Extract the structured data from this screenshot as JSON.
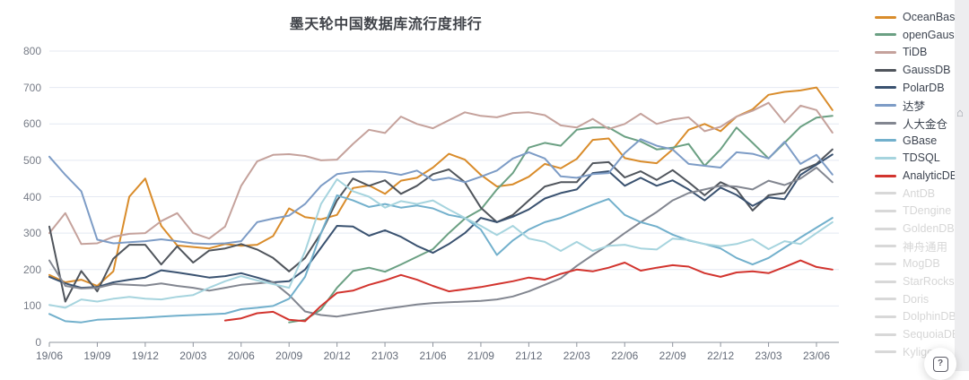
{
  "chart_data": {
    "type": "line",
    "title": "墨天轮中国数据库流行度排行",
    "xlabel": "",
    "ylabel": "",
    "ylim": [
      0,
      800
    ],
    "y_tick_interval": 100,
    "y_tick_labels": [
      "0",
      "100",
      "200",
      "300",
      "400",
      "500",
      "600",
      "700",
      "800"
    ],
    "x_interval": "monthly",
    "x_range_start": "19/06",
    "x_range_end": "23/07",
    "x_tick_labels": [
      "19/06",
      "19/09",
      "19/12",
      "20/03",
      "20/06",
      "20/09",
      "20/12",
      "21/03",
      "21/06",
      "21/09",
      "21/12",
      "22/03",
      "22/06",
      "22/09",
      "22/12",
      "23/03",
      "23/06"
    ],
    "grid": true,
    "legend_position": "right",
    "inactive_color": "#d8d8d8",
    "grid_color": "#e4e9f2",
    "axis_color": "#8f949e",
    "series": [
      {
        "name": "OceanBase",
        "color": "#d98c2b",
        "active": true,
        "values": [
          185,
          165,
          172,
          155,
          195,
          400,
          450,
          320,
          266,
          262,
          258,
          270,
          265,
          268,
          292,
          368,
          344,
          338,
          350,
          424,
          431,
          408,
          444,
          452,
          480,
          518,
          502,
          460,
          428,
          434,
          455,
          490,
          478,
          504,
          556,
          560,
          506,
          497,
          492,
          530,
          584,
          600,
          580,
          620,
          640,
          680,
          688,
          692,
          700,
          638
        ]
      },
      {
        "name": "openGauss",
        "color": "#6ba083",
        "active": true,
        "values": [
          null,
          null,
          null,
          null,
          null,
          null,
          null,
          null,
          null,
          null,
          null,
          null,
          null,
          null,
          null,
          55,
          62,
          90,
          150,
          196,
          205,
          194,
          214,
          235,
          256,
          300,
          340,
          365,
          420,
          465,
          535,
          548,
          540,
          584,
          590,
          590,
          565,
          552,
          530,
          535,
          545,
          485,
          530,
          590,
          548,
          505,
          548,
          592,
          617,
          622
        ]
      },
      {
        "name": "TiDB",
        "color": "#c5a29c",
        "active": true,
        "values": [
          300,
          355,
          270,
          272,
          290,
          298,
          300,
          333,
          355,
          300,
          285,
          318,
          430,
          497,
          515,
          517,
          512,
          500,
          502,
          545,
          584,
          575,
          620,
          600,
          588,
          610,
          632,
          622,
          618,
          630,
          632,
          624,
          596,
          590,
          614,
          586,
          600,
          628,
          600,
          612,
          618,
          580,
          592,
          620,
          636,
          658,
          604,
          650,
          638,
          576
        ]
      },
      {
        "name": "GaussDB",
        "color": "#50555c",
        "active": true,
        "values": [
          318,
          112,
          196,
          140,
          230,
          268,
          268,
          214,
          264,
          219,
          252,
          258,
          270,
          255,
          232,
          195,
          232,
          300,
          390,
          450,
          430,
          445,
          408,
          430,
          462,
          475,
          440,
          370,
          330,
          350,
          390,
          428,
          440,
          440,
          492,
          495,
          453,
          470,
          446,
          473,
          440,
          404,
          440,
          420,
          362,
          404,
          410,
          472,
          490,
          530
        ]
      },
      {
        "name": "PolarDB",
        "color": "#3a5270",
        "active": true,
        "values": [
          180,
          162,
          150,
          152,
          165,
          172,
          178,
          198,
          192,
          185,
          178,
          182,
          190,
          178,
          165,
          168,
          200,
          260,
          320,
          318,
          293,
          308,
          290,
          265,
          246,
          270,
          300,
          342,
          330,
          345,
          365,
          395,
          410,
          420,
          465,
          470,
          430,
          452,
          430,
          445,
          420,
          390,
          425,
          405,
          375,
          398,
          393,
          460,
          488,
          516
        ]
      },
      {
        "name": "达梦",
        "color": "#7d9cc6",
        "active": true,
        "values": [
          510,
          460,
          415,
          282,
          272,
          275,
          278,
          283,
          278,
          272,
          270,
          272,
          278,
          330,
          340,
          348,
          380,
          430,
          462,
          468,
          470,
          468,
          460,
          472,
          445,
          452,
          440,
          455,
          472,
          505,
          522,
          505,
          456,
          452,
          462,
          465,
          520,
          558,
          540,
          530,
          490,
          485,
          480,
          522,
          518,
          505,
          551,
          490,
          515,
          461
        ]
      },
      {
        "name": "人大金仓",
        "color": "#828690",
        "active": true,
        "values": [
          225,
          155,
          148,
          150,
          160,
          158,
          156,
          162,
          155,
          150,
          142,
          150,
          158,
          162,
          166,
          130,
          85,
          75,
          71,
          78,
          85,
          92,
          98,
          104,
          108,
          110,
          112,
          114,
          118,
          126,
          140,
          158,
          176,
          210,
          240,
          268,
          300,
          330,
          358,
          390,
          410,
          420,
          430,
          428,
          420,
          444,
          432,
          450,
          480,
          440
        ]
      },
      {
        "name": "GBase",
        "color": "#72b0cc",
        "active": true,
        "values": [
          78,
          58,
          55,
          62,
          64,
          66,
          68,
          71,
          73,
          75,
          77,
          79,
          91,
          95,
          100,
          120,
          180,
          300,
          404,
          390,
          372,
          380,
          370,
          376,
          368,
          350,
          342,
          310,
          240,
          280,
          310,
          330,
          342,
          360,
          378,
          394,
          350,
          330,
          318,
          296,
          280,
          270,
          258,
          232,
          214,
          232,
          260,
          288,
          315,
          342
        ]
      },
      {
        "name": "TDSQL",
        "color": "#a6d4de",
        "active": true,
        "values": [
          103,
          95,
          118,
          112,
          120,
          125,
          120,
          118,
          125,
          130,
          150,
          168,
          182,
          170,
          160,
          150,
          250,
          380,
          448,
          415,
          400,
          370,
          388,
          380,
          390,
          365,
          342,
          320,
          295,
          320,
          285,
          276,
          251,
          276,
          251,
          265,
          268,
          258,
          255,
          285,
          281,
          270,
          264,
          270,
          283,
          256,
          278,
          270,
          300,
          330
        ]
      },
      {
        "name": "AnalyticDB",
        "color": "#d2342e",
        "active": true,
        "values": [
          null,
          null,
          null,
          null,
          null,
          null,
          null,
          null,
          null,
          null,
          null,
          60,
          66,
          80,
          84,
          62,
          58,
          100,
          136,
          142,
          158,
          170,
          185,
          172,
          155,
          140,
          146,
          152,
          160,
          168,
          178,
          172,
          188,
          200,
          195,
          205,
          219,
          197,
          205,
          212,
          208,
          190,
          180,
          192,
          195,
          190,
          207,
          225,
          207,
          200
        ]
      },
      {
        "name": "AntDB",
        "color": "#d8d8d8",
        "active": false,
        "values": null
      },
      {
        "name": "TDengine",
        "color": "#d8d8d8",
        "active": false,
        "values": null
      },
      {
        "name": "GoldenDB",
        "color": "#d8d8d8",
        "active": false,
        "values": null
      },
      {
        "name": "神舟通用",
        "color": "#d8d8d8",
        "active": false,
        "values": null
      },
      {
        "name": "MogDB",
        "color": "#d8d8d8",
        "active": false,
        "values": null
      },
      {
        "name": "StarRocks",
        "color": "#d8d8d8",
        "active": false,
        "values": null
      },
      {
        "name": "Doris",
        "color": "#d8d8d8",
        "active": false,
        "values": null
      },
      {
        "name": "DolphinDB",
        "color": "#d8d8d8",
        "active": false,
        "values": null
      },
      {
        "name": "SequoiaDB",
        "color": "#d8d8d8",
        "active": false,
        "values": null
      },
      {
        "name": "Kylige",
        "color": "#d8d8d8",
        "active": false,
        "values": null
      }
    ]
  },
  "help_button": {
    "glyph": "?"
  },
  "side_rail": {
    "home_glyph": "⌂"
  }
}
